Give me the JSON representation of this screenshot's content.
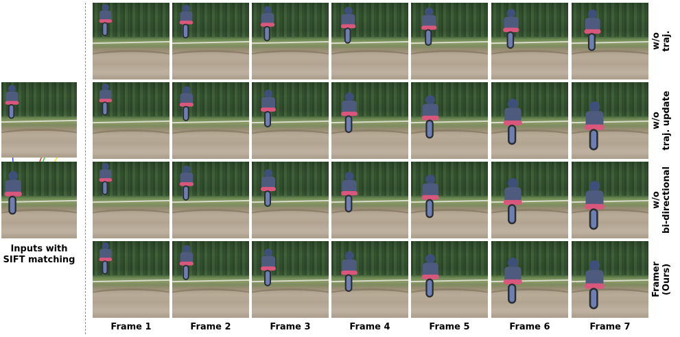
{
  "rows": [
    {
      "label_line1": "w/o",
      "label_line2": "traj."
    },
    {
      "label_line1": "w/o",
      "label_line2": "traj. update"
    },
    {
      "label_line1": "w/o",
      "label_line2": "bi-directional"
    },
    {
      "label_line1": "Framer",
      "label_line2": "(Ours)"
    }
  ],
  "columns": [
    "Frame 1",
    "Frame 2",
    "Frame 3",
    "Frame 4",
    "Frame 5",
    "Frame 6",
    "Frame 7"
  ],
  "inputs_label_line1": "Inputs with",
  "inputs_label_line2": "SIFT matching",
  "match_colors": [
    "#2b4cff",
    "#ff2b2b",
    "#2bd12b",
    "#e6e62b"
  ]
}
